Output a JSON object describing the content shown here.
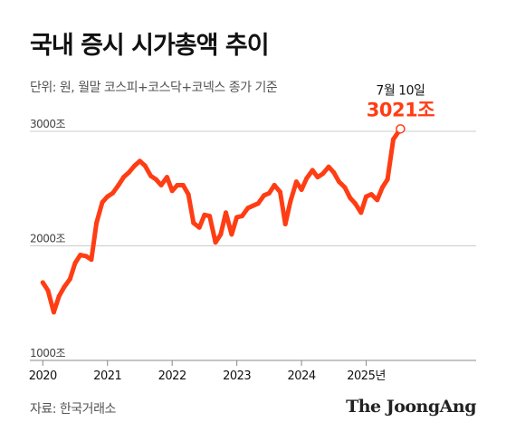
{
  "title": "국내 증시 시가총액 추이",
  "subtitle": "단위: 원, 월말 코스피+코스닥+코넥스 종가 기준",
  "source": "자료: 한국거래소",
  "brand": "The JoongAng",
  "colors": {
    "line": "#ff3d14",
    "grid": "#cccccc",
    "axis": "#888888"
  },
  "chart_data": {
    "type": "line",
    "title": "국내 증시 시가총액 추이",
    "ylabel": "",
    "xlabel": "",
    "ylim": [
      1000,
      3000
    ],
    "xlim": [
      2019.8,
      2026.7
    ],
    "grid": true,
    "y_ticks": [
      {
        "value": 1000,
        "label": "1000조"
      },
      {
        "value": 2000,
        "label": "2000조"
      },
      {
        "value": 3000,
        "label": "3000조"
      }
    ],
    "x_ticks": [
      {
        "value": 2020,
        "label": "2020"
      },
      {
        "value": 2021,
        "label": "2021"
      },
      {
        "value": 2022,
        "label": "2022"
      },
      {
        "value": 2023,
        "label": "2023"
      },
      {
        "value": 2024,
        "label": "2024"
      },
      {
        "value": 2025,
        "label": "2025년"
      }
    ],
    "series": [
      {
        "x": [
          2020.0,
          2020.08,
          2020.17,
          2020.25,
          2020.33,
          2020.42,
          2020.5,
          2020.58,
          2020.67,
          2020.75,
          2020.83,
          2020.92,
          2021.0,
          2021.08,
          2021.17,
          2021.25,
          2021.33,
          2021.42,
          2021.5,
          2021.58,
          2021.67,
          2021.75,
          2021.83,
          2021.92,
          2022.0,
          2022.08,
          2022.17,
          2022.25,
          2022.33,
          2022.42,
          2022.5,
          2022.58,
          2022.67,
          2022.75,
          2022.83,
          2022.92,
          2023.0,
          2023.08,
          2023.17,
          2023.25,
          2023.33,
          2023.42,
          2023.5,
          2023.58,
          2023.67,
          2023.75,
          2023.83,
          2023.92,
          2024.0,
          2024.08,
          2024.17,
          2024.25,
          2024.33,
          2024.42,
          2024.5,
          2024.58,
          2024.67,
          2024.75,
          2024.83,
          2024.92,
          2025.0,
          2025.08,
          2025.17,
          2025.25,
          2025.33,
          2025.42,
          2025.53
        ],
        "values": [
          1680,
          1610,
          1420,
          1560,
          1640,
          1710,
          1850,
          1920,
          1910,
          1880,
          2200,
          2380,
          2430,
          2460,
          2530,
          2600,
          2640,
          2700,
          2740,
          2700,
          2610,
          2580,
          2530,
          2600,
          2480,
          2530,
          2530,
          2450,
          2200,
          2160,
          2270,
          2260,
          2030,
          2100,
          2290,
          2100,
          2250,
          2260,
          2330,
          2350,
          2370,
          2440,
          2460,
          2530,
          2470,
          2190,
          2390,
          2560,
          2490,
          2590,
          2660,
          2600,
          2630,
          2690,
          2640,
          2560,
          2510,
          2420,
          2370,
          2290,
          2430,
          2450,
          2400,
          2510,
          2580,
          2930,
          3021
        ]
      }
    ],
    "annotation": {
      "x": 2025.53,
      "value": 3021,
      "date_label": "7월 10일",
      "value_label": "3021조"
    }
  }
}
